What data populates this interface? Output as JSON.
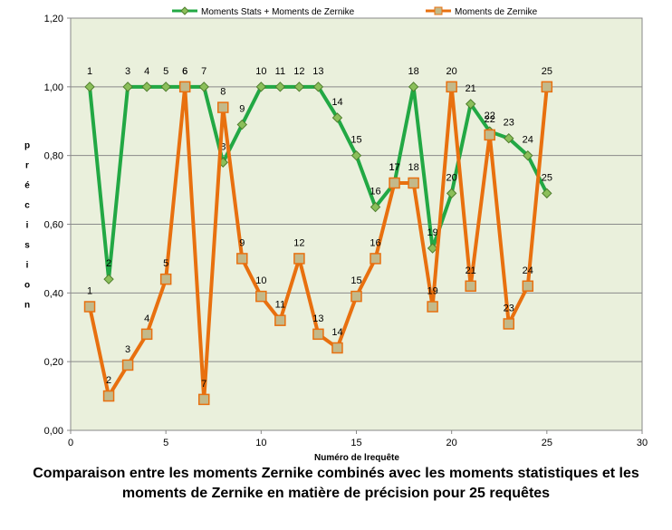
{
  "chart_data": {
    "type": "line",
    "title": "Comparaison entre les moments Zernike combinés avec les moments statistiques et les moments de Zernike en matière de précision pour 25 requêtes",
    "xlabel": "Numéro de lrequête",
    "ylabel": "précision",
    "xlim": [
      0,
      30
    ],
    "ylim": [
      0,
      1.2
    ],
    "x_ticks": [
      "0",
      "5",
      "10",
      "15",
      "20",
      "25",
      "30"
    ],
    "y_ticks": [
      "0,00",
      "0,20",
      "0,40",
      "0,60",
      "0,80",
      "1,00",
      "1,20"
    ],
    "grid": "horizontal",
    "legend_position": "top",
    "plot_background": "#eaf0dc",
    "series": [
      {
        "name": "Moments Stats + Moments de Zernike",
        "color": "#22a844",
        "marker": "diamond",
        "marker_color": "#8bbf5a",
        "x": [
          1,
          2,
          3,
          4,
          5,
          6,
          7,
          8,
          9,
          10,
          11,
          12,
          13,
          14,
          15,
          16,
          17,
          18,
          19,
          20,
          21,
          22,
          23,
          24,
          25
        ],
        "values": [
          1.0,
          0.44,
          1.0,
          1.0,
          1.0,
          1.0,
          1.0,
          0.78,
          0.89,
          1.0,
          1.0,
          1.0,
          1.0,
          0.91,
          0.8,
          0.65,
          0.72,
          1.0,
          0.53,
          0.69,
          0.95,
          0.87,
          0.85,
          0.8,
          0.69
        ],
        "labels": [
          "1",
          "2",
          "3",
          "4",
          "5",
          "6",
          "7",
          "8",
          "9",
          "10",
          "11",
          "12",
          "13",
          "14",
          "15",
          "16",
          "17",
          "18",
          "19",
          "20",
          "21",
          "22",
          "23",
          "24",
          "25"
        ]
      },
      {
        "name": "Moments de Zernike",
        "color": "#e8700f",
        "marker": "square",
        "marker_color": "#c3b98a",
        "x": [
          1,
          2,
          3,
          4,
          5,
          6,
          7,
          8,
          9,
          10,
          11,
          12,
          13,
          14,
          15,
          16,
          17,
          18,
          19,
          20,
          21,
          22,
          23,
          24,
          25
        ],
        "values": [
          0.36,
          0.1,
          0.19,
          0.28,
          0.44,
          1.0,
          0.09,
          0.94,
          0.5,
          0.39,
          0.32,
          0.5,
          0.28,
          0.24,
          0.39,
          0.5,
          0.72,
          0.72,
          0.36,
          1.0,
          0.42,
          0.86,
          0.31,
          0.42,
          1.0
        ],
        "labels": [
          "1",
          "2",
          "3",
          "4",
          "5",
          "6",
          "7",
          "8",
          "9",
          "10",
          "11",
          "12",
          "13",
          "14",
          "15",
          "16",
          "17",
          "18",
          "19",
          "20",
          "21",
          "22",
          "23",
          "24",
          "25"
        ]
      }
    ]
  }
}
